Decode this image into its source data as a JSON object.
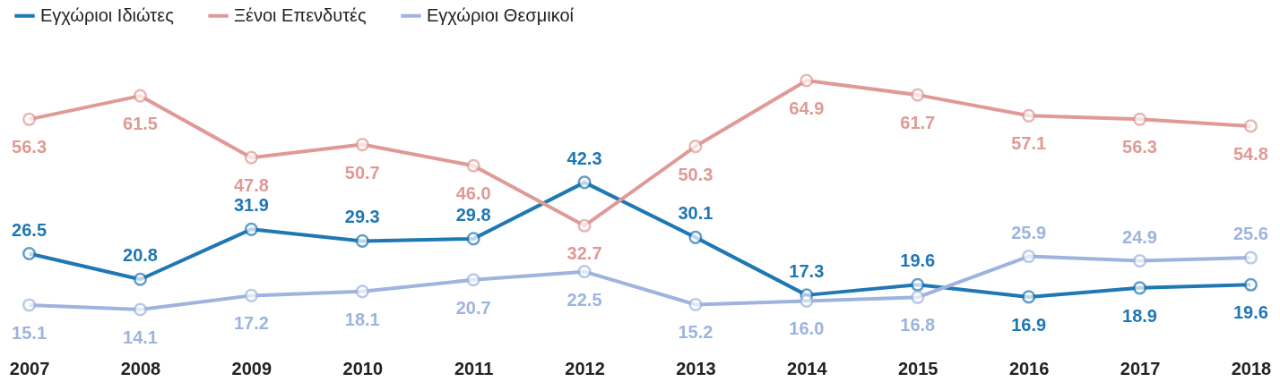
{
  "chart_data": {
    "type": "line",
    "categories": [
      "2007",
      "2008",
      "2009",
      "2010",
      "2011",
      "2012",
      "2013",
      "2014",
      "2015",
      "2016",
      "2017",
      "2018"
    ],
    "series": [
      {
        "name": "Εγχώριοι Ιδιώτες",
        "color": "#1f77b4",
        "values": [
          26.5,
          20.8,
          31.9,
          29.3,
          29.8,
          42.3,
          30.1,
          17.3,
          19.6,
          16.9,
          18.9,
          19.6
        ],
        "value_labels": [
          "26.5",
          "20.8",
          "31.9",
          "29.3",
          "29.8",
          "42.3",
          "30.1",
          "17.3",
          "19.6",
          "16.9",
          "18.9",
          "19.6"
        ]
      },
      {
        "name": "Ξένοι Επενδυτές",
        "color": "#df9a96",
        "values": [
          56.3,
          61.5,
          47.8,
          50.7,
          46.0,
          32.7,
          50.3,
          64.9,
          61.7,
          57.1,
          56.3,
          54.8
        ],
        "value_labels": [
          "56.3",
          "61.5",
          "47.8",
          "50.7",
          "46.0",
          "32.7",
          "50.3",
          "64.9",
          "61.7",
          "57.1",
          "56.3",
          "54.8"
        ]
      },
      {
        "name": "Εγχώριοι Θεσμικοί",
        "color": "#9db4de",
        "values": [
          15.1,
          14.1,
          17.2,
          18.1,
          20.7,
          22.5,
          15.2,
          16.0,
          16.8,
          25.9,
          24.9,
          25.6
        ],
        "value_labels": [
          "15.1",
          "14.1",
          "17.2",
          "18.1",
          "20.7",
          "22.5",
          "15.2",
          "16.0",
          "16.8",
          "25.9",
          "24.9",
          "25.6"
        ]
      }
    ],
    "legend": "top left",
    "marker": "circle",
    "grid": false,
    "tick_labels": "x"
  }
}
